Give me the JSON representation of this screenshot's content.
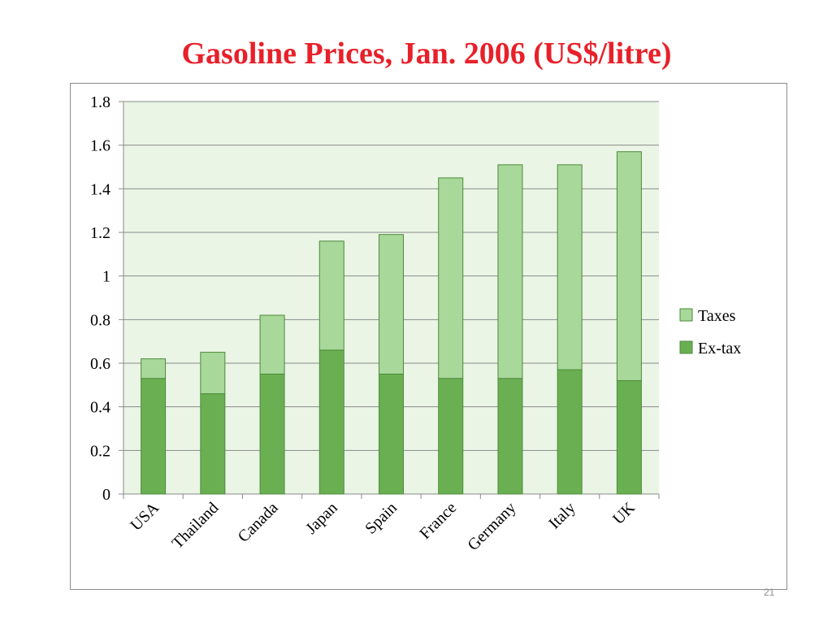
{
  "slide": {
    "title": "Gasoline Prices, Jan. 2006 (US$/litre)",
    "page_number": "21"
  },
  "colors": {
    "title": "#e8202a",
    "plot_background": "#eaf5e5",
    "extax": "#6ab053",
    "taxes": "#a8d89a",
    "bar_border": "#4e8a3b"
  },
  "chart_data": {
    "type": "bar",
    "stacked": true,
    "title": "",
    "xlabel": "",
    "ylabel": "",
    "categories": [
      "USA",
      "Thailand",
      "Canada",
      "Japan",
      "Spain",
      "France",
      "Germany",
      "Italy",
      "UK"
    ],
    "series": [
      {
        "name": "Ex-tax",
        "values": [
          0.53,
          0.46,
          0.55,
          0.66,
          0.55,
          0.53,
          0.53,
          0.57,
          0.52
        ]
      },
      {
        "name": "Taxes",
        "values": [
          0.09,
          0.19,
          0.27,
          0.5,
          0.64,
          0.92,
          0.98,
          0.94,
          1.05
        ]
      }
    ],
    "ylim": [
      0,
      1.8
    ],
    "yticks": [
      "0",
      "0.2",
      "0.4",
      "0.6",
      "0.8",
      "1",
      "1.2",
      "1.4",
      "1.6",
      "1.8"
    ],
    "grid": true,
    "legend": {
      "position": "right",
      "entries": [
        "Taxes",
        "Ex-tax"
      ]
    }
  }
}
